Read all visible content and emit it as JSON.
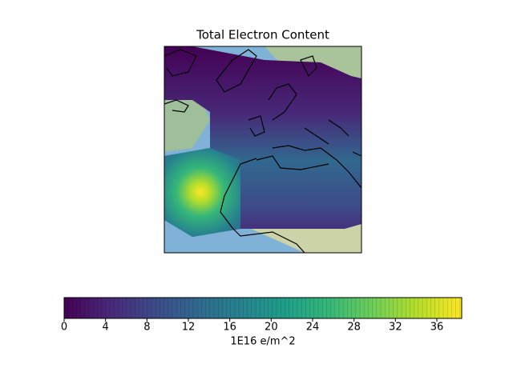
{
  "chart_data": {
    "type": "colormap-map",
    "title": "Total Electron Content",
    "colorbar": {
      "label": "1E16 e/m^2",
      "clim": [
        0,
        38.4
      ],
      "ticks": [
        0,
        4,
        8,
        12,
        16,
        20,
        24,
        28,
        32,
        36
      ],
      "colors": [
        "#440154",
        "#482878",
        "#3e4989",
        "#31688e",
        "#26828e",
        "#1f9e89",
        "#35b779",
        "#6ece58",
        "#b5de2b",
        "#fde725"
      ]
    }
  }
}
